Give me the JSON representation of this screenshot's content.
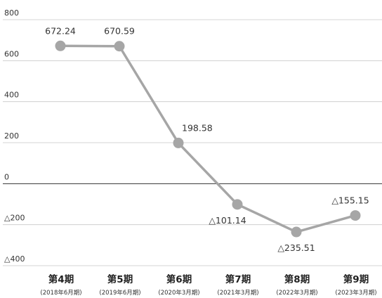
{
  "chart_data": {
    "type": "line",
    "categories": [
      "第4期",
      "第5期",
      "第6期",
      "第7期",
      "第8期",
      "第9期"
    ],
    "category_sublabels": [
      "(2018年6月期)",
      "(2019年6月期)",
      "(2020年3月期)",
      "(2021年3月期)",
      "(2022年3月期)",
      "(2023年3月期)"
    ],
    "values": [
      672.24,
      670.59,
      198.58,
      -101.14,
      -235.51,
      -155.15
    ],
    "data_labels": [
      "672.24",
      "670.59",
      "198.58",
      "△101.14",
      "△235.51",
      "△155.15"
    ],
    "yticks": [
      800,
      600,
      400,
      200,
      0,
      -200,
      -400
    ],
    "ytick_labels": [
      "800",
      "600",
      "400",
      "200",
      "0",
      "△200",
      "△400"
    ],
    "ylim": [
      -400,
      800
    ],
    "grid": true,
    "title": "",
    "xlabel": "",
    "ylabel": "",
    "colors": {
      "line": "#a6a6a6",
      "marker": "#a6a6a6",
      "grid": "#c8c8c8",
      "zero_line": "#333333"
    }
  }
}
